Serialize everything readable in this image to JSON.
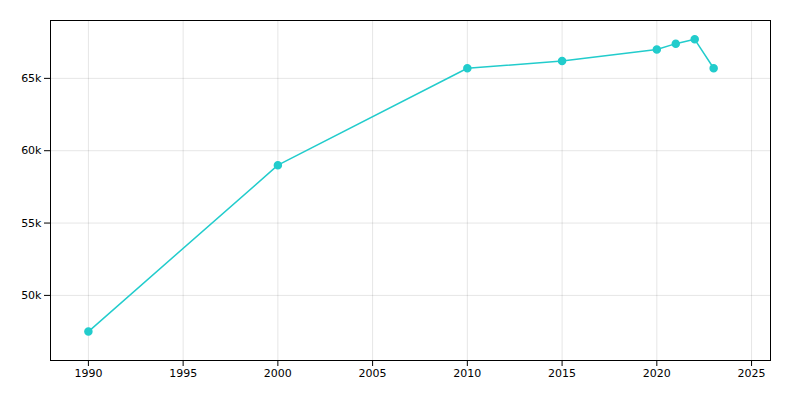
{
  "chart_data": {
    "type": "line",
    "x": [
      1990,
      2000,
      2010,
      2015,
      2020,
      2021,
      2022,
      2023
    ],
    "values": [
      47500,
      59000,
      65700,
      66200,
      67000,
      67400,
      67700,
      65700
    ],
    "color": "#22cccc",
    "marker": "circle",
    "xlim": [
      1988,
      2026
    ],
    "xticks": [
      1990,
      1995,
      2000,
      2005,
      2010,
      2015,
      2020,
      2025
    ],
    "ylim": [
      45500,
      69000
    ],
    "yticks": [
      {
        "value": 50000,
        "label": "50k"
      },
      {
        "value": 55000,
        "label": "55k"
      },
      {
        "value": 60000,
        "label": "60k"
      },
      {
        "value": 65000,
        "label": "65k"
      }
    ],
    "grid": true
  }
}
